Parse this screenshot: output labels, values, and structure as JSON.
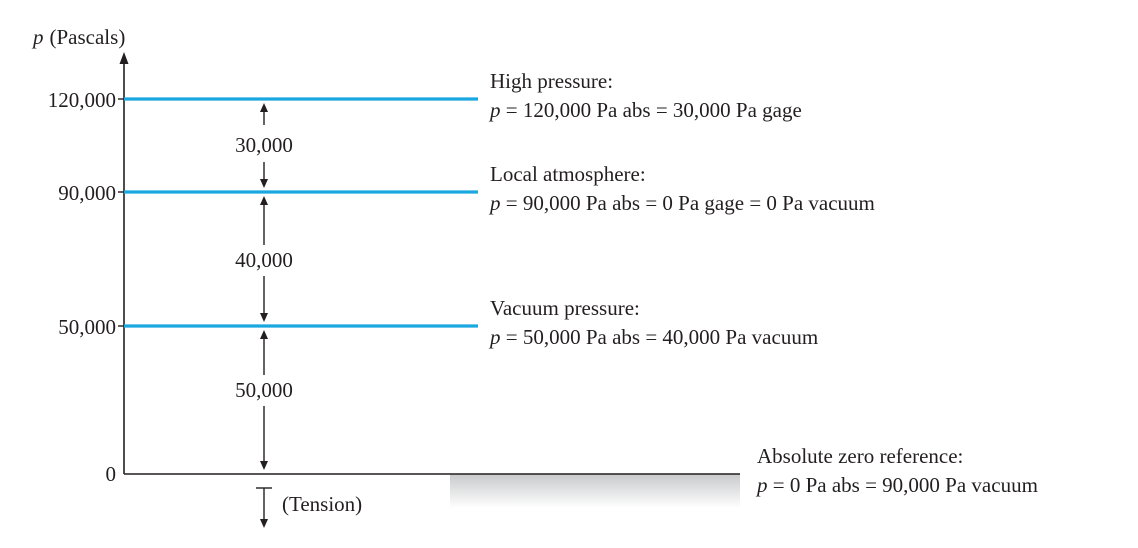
{
  "axis": {
    "symbol": "p",
    "unit_label": "(Pascals)",
    "tick_labels": [
      "120,000",
      "90,000",
      "50,000",
      "0"
    ]
  },
  "levels": [
    {
      "value": 120000,
      "title": "High pressure:",
      "eq_symbol": "p",
      "eq_rest": " = 120,000 Pa abs = 30,000 Pa gage"
    },
    {
      "value": 90000,
      "title": "Local atmosphere:",
      "eq_symbol": "p",
      "eq_rest": " = 90,000 Pa abs = 0 Pa gage = 0 Pa vacuum"
    },
    {
      "value": 50000,
      "title": "Vacuum pressure:",
      "eq_symbol": "p",
      "eq_rest": " = 50,000 Pa abs = 40,000 Pa vacuum"
    },
    {
      "value": 0,
      "title": "Absolute zero reference:",
      "eq_symbol": "p",
      "eq_rest": " = 0 Pa abs = 90,000 Pa vacuum"
    }
  ],
  "differences": [
    "30,000",
    "40,000",
    "50,000"
  ],
  "tension_label": "(Tension)",
  "colors": {
    "level_line": "#1ba8e0",
    "ink": "#231f20",
    "ground_top": "#c8c9cb",
    "ground_bottom": "#ffffff"
  }
}
